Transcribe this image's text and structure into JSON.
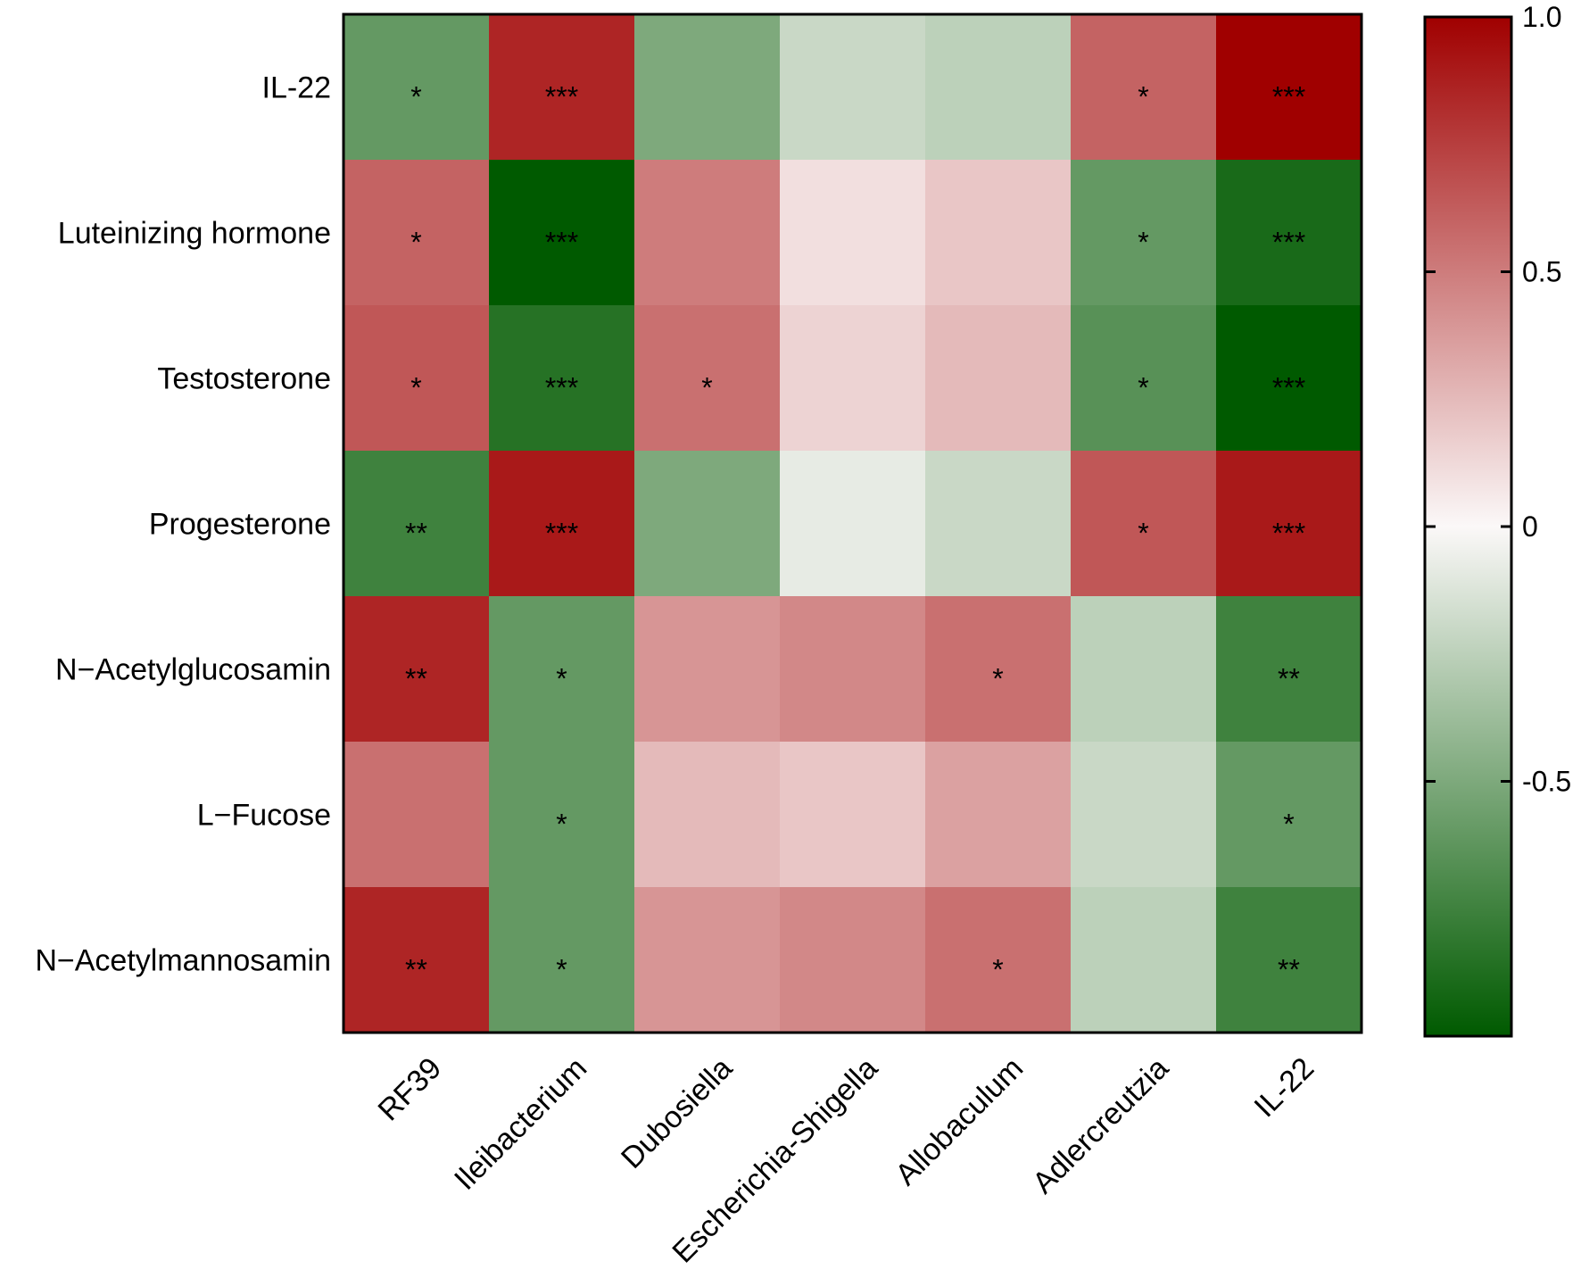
{
  "chart_data": {
    "type": "heatmap",
    "title": "",
    "rows": [
      "IL-22",
      "Luteinizing hormone",
      "Testosterone",
      "Progesterone",
      "N−Acetylglucosamin",
      "L−Fucose",
      "N−Acetylmannosamin"
    ],
    "columns": [
      "RF39",
      "Ileibacterium",
      "Dubosiella",
      "Escherichia-Shigella",
      "Allobaculum",
      "Adlercreutzia",
      "IL-22"
    ],
    "values": [
      [
        -0.6,
        0.85,
        -0.5,
        -0.2,
        -0.25,
        0.6,
        1.0
      ],
      [
        0.6,
        -1.0,
        0.5,
        0.1,
        0.2,
        -0.6,
        -0.9
      ],
      [
        0.65,
        -0.85,
        0.55,
        0.15,
        0.25,
        -0.65,
        -1.0
      ],
      [
        -0.75,
        0.9,
        -0.5,
        -0.08,
        -0.2,
        0.65,
        0.9
      ],
      [
        0.85,
        -0.6,
        0.4,
        0.45,
        0.55,
        -0.25,
        -0.75
      ],
      [
        0.55,
        -0.6,
        0.25,
        0.2,
        0.35,
        -0.2,
        -0.6
      ],
      [
        0.85,
        -0.6,
        0.4,
        0.45,
        0.55,
        -0.25,
        -0.75
      ]
    ],
    "significance": [
      [
        "*",
        "***",
        "",
        "",
        "",
        "*",
        "***"
      ],
      [
        "*",
        "***",
        "",
        "",
        "",
        "*",
        "***"
      ],
      [
        "*",
        "***",
        "*",
        "",
        "",
        "*",
        "***"
      ],
      [
        "**",
        "***",
        "",
        "",
        "",
        "*",
        "***"
      ],
      [
        "**",
        "*",
        "",
        "",
        "*",
        "",
        "**"
      ],
      [
        "",
        "*",
        "",
        "",
        "",
        "",
        "*"
      ],
      [
        "**",
        "*",
        "",
        "",
        "*",
        "",
        "**"
      ]
    ],
    "color_scale": {
      "min": -1.0,
      "max": 1.0,
      "low_color": "#005a00",
      "mid_color": "#fbf8f8",
      "high_color": "#a00000",
      "ticks": [
        1.0,
        0.5,
        0,
        -0.5
      ],
      "tick_labels": [
        "1.0",
        "0.5",
        "0",
        "-0.5"
      ]
    }
  }
}
